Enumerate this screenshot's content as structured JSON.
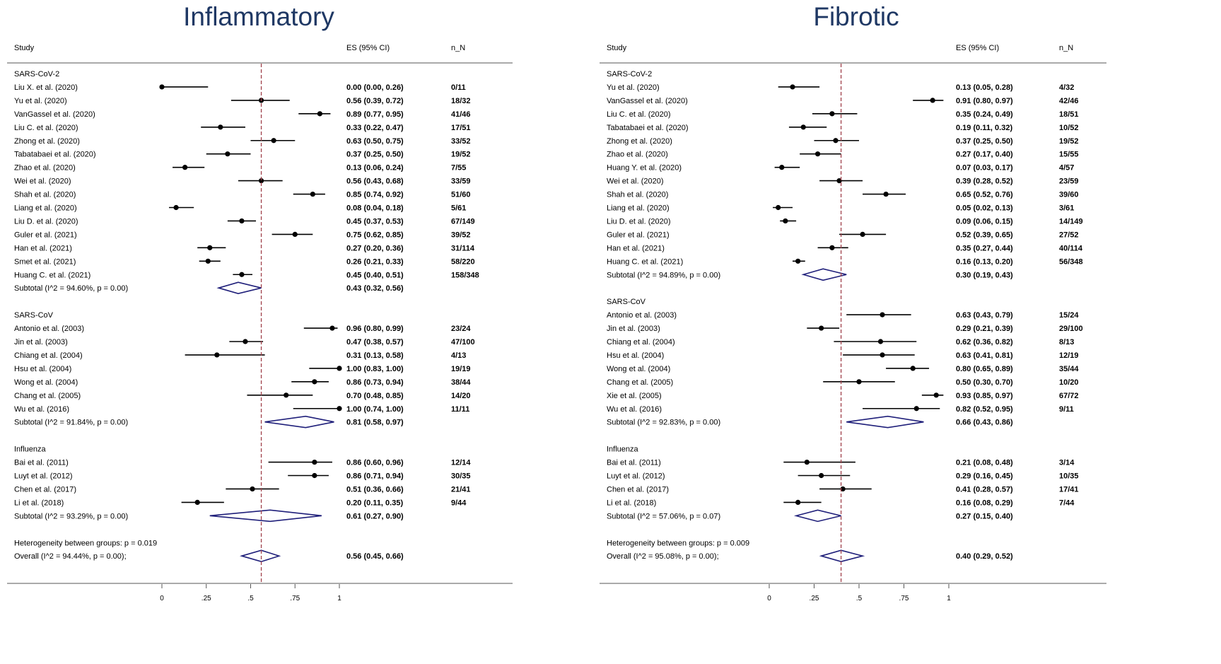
{
  "chart_data": [
    {
      "type": "forest",
      "title": "Inflammatory",
      "columns": {
        "study": "Study",
        "es": "ES (95% CI)",
        "n": "n_N"
      },
      "xticks": [
        "0",
        ".25",
        ".5",
        ".75",
        "1"
      ],
      "xlim": [
        0,
        1
      ],
      "overall_line": 0.56,
      "groups": [
        {
          "name": "SARS-CoV-2",
          "studies": [
            {
              "label": "Liu X. et al. (2020)",
              "es": 0.0,
              "lo": 0.0,
              "hi": 0.26,
              "text": "0.00 (0.00, 0.26)",
              "n": "0/11"
            },
            {
              "label": "Yu et al. (2020)",
              "es": 0.56,
              "lo": 0.39,
              "hi": 0.72,
              "text": "0.56 (0.39, 0.72)",
              "n": "18/32"
            },
            {
              "label": "VanGassel et al. (2020)",
              "es": 0.89,
              "lo": 0.77,
              "hi": 0.95,
              "text": "0.89 (0.77, 0.95)",
              "n": "41/46"
            },
            {
              "label": "Liu C. et al. (2020)",
              "es": 0.33,
              "lo": 0.22,
              "hi": 0.47,
              "text": "0.33 (0.22, 0.47)",
              "n": "17/51"
            },
            {
              "label": "Zhong et al. (2020)",
              "es": 0.63,
              "lo": 0.5,
              "hi": 0.75,
              "text": "0.63 (0.50, 0.75)",
              "n": "33/52"
            },
            {
              "label": "Tabatabaei et al. (2020)",
              "es": 0.37,
              "lo": 0.25,
              "hi": 0.5,
              "text": "0.37 (0.25, 0.50)",
              "n": "19/52"
            },
            {
              "label": "Zhao et al. (2020)",
              "es": 0.13,
              "lo": 0.06,
              "hi": 0.24,
              "text": "0.13 (0.06, 0.24)",
              "n": "7/55"
            },
            {
              "label": "Wei et al. (2020)",
              "es": 0.56,
              "lo": 0.43,
              "hi": 0.68,
              "text": "0.56 (0.43, 0.68)",
              "n": "33/59"
            },
            {
              "label": "Shah et al. (2020)",
              "es": 0.85,
              "lo": 0.74,
              "hi": 0.92,
              "text": "0.85 (0.74, 0.92)",
              "n": "51/60"
            },
            {
              "label": "Liang et al.  (2020)",
              "es": 0.08,
              "lo": 0.04,
              "hi": 0.18,
              "text": "0.08 (0.04, 0.18)",
              "n": "5/61"
            },
            {
              "label": "Liu D. et al. (2020)",
              "es": 0.45,
              "lo": 0.37,
              "hi": 0.53,
              "text": "0.45 (0.37, 0.53)",
              "n": "67/149"
            },
            {
              "label": "Guler et al. (2021)",
              "es": 0.75,
              "lo": 0.62,
              "hi": 0.85,
              "text": "0.75 (0.62, 0.85)",
              "n": "39/52"
            },
            {
              "label": "Han et al. (2021)",
              "es": 0.27,
              "lo": 0.2,
              "hi": 0.36,
              "text": "0.27 (0.20, 0.36)",
              "n": "31/114"
            },
            {
              "label": "Smet et al. (2021)",
              "es": 0.26,
              "lo": 0.21,
              "hi": 0.33,
              "text": "0.26 (0.21, 0.33)",
              "n": "58/220"
            },
            {
              "label": "Huang C. et al. (2021)",
              "es": 0.45,
              "lo": 0.4,
              "hi": 0.51,
              "text": "0.45 (0.40, 0.51)",
              "n": "158/348"
            }
          ],
          "subtotal": {
            "label": "Subtotal  (I^2 = 94.60%, p = 0.00)",
            "es": 0.43,
            "lo": 0.32,
            "hi": 0.56,
            "text": "0.43 (0.32, 0.56)"
          }
        },
        {
          "name": "SARS-CoV",
          "studies": [
            {
              "label": "Antonio et al.  (2003)",
              "es": 0.96,
              "lo": 0.8,
              "hi": 0.99,
              "text": "0.96 (0.80, 0.99)",
              "n": "23/24"
            },
            {
              "label": "Jin et al.  (2003)",
              "es": 0.47,
              "lo": 0.38,
              "hi": 0.57,
              "text": "0.47 (0.38, 0.57)",
              "n": "47/100"
            },
            {
              "label": "Chiang et al. (2004)",
              "es": 0.31,
              "lo": 0.13,
              "hi": 0.58,
              "text": "0.31 (0.13, 0.58)",
              "n": "4/13"
            },
            {
              "label": "Hsu et al.  (2004)",
              "es": 1.0,
              "lo": 0.83,
              "hi": 1.0,
              "text": "1.00 (0.83, 1.00)",
              "n": "19/19"
            },
            {
              "label": "Wong et al. (2004)",
              "es": 0.86,
              "lo": 0.73,
              "hi": 0.94,
              "text": "0.86 (0.73, 0.94)",
              "n": "38/44"
            },
            {
              "label": "Chang et al. (2005)",
              "es": 0.7,
              "lo": 0.48,
              "hi": 0.85,
              "text": "0.70 (0.48, 0.85)",
              "n": "14/20"
            },
            {
              "label": "Wu et al. (2016)",
              "es": 1.0,
              "lo": 0.74,
              "hi": 1.0,
              "text": "1.00 (0.74, 1.00)",
              "n": "11/11"
            }
          ],
          "subtotal": {
            "label": "Subtotal  (I^2 = 91.84%, p = 0.00)",
            "es": 0.81,
            "lo": 0.58,
            "hi": 0.97,
            "text": "0.81 (0.58, 0.97)"
          }
        },
        {
          "name": "Influenza",
          "studies": [
            {
              "label": "Bai et al. (2011)",
              "es": 0.86,
              "lo": 0.6,
              "hi": 0.96,
              "text": "0.86 (0.60, 0.96)",
              "n": "12/14"
            },
            {
              "label": "Luyt et al. (2012)",
              "es": 0.86,
              "lo": 0.71,
              "hi": 0.94,
              "text": "0.86 (0.71, 0.94)",
              "n": "30/35"
            },
            {
              "label": "Chen et al. (2017)",
              "es": 0.51,
              "lo": 0.36,
              "hi": 0.66,
              "text": "0.51 (0.36, 0.66)",
              "n": "21/41"
            },
            {
              "label": "Li et al. (2018)",
              "es": 0.2,
              "lo": 0.11,
              "hi": 0.35,
              "text": "0.20 (0.11, 0.35)",
              "n": "9/44"
            }
          ],
          "subtotal": {
            "label": "Subtotal  (I^2 = 93.29%, p = 0.00)",
            "es": 0.61,
            "lo": 0.27,
            "hi": 0.9,
            "text": "0.61 (0.27, 0.90)"
          }
        }
      ],
      "heterogeneity": "Heterogeneity between groups: p = 0.019",
      "overall": {
        "label": "Overall  (I^2 = 94.44%, p = 0.00);",
        "es": 0.56,
        "lo": 0.45,
        "hi": 0.66,
        "text": "0.56 (0.45, 0.66)"
      }
    },
    {
      "type": "forest",
      "title": "Fibrotic",
      "columns": {
        "study": "Study",
        "es": "ES (95% CI)",
        "n": "n_N"
      },
      "xticks": [
        "0",
        ".25",
        ".5",
        ".75",
        "1"
      ],
      "xlim": [
        0,
        1
      ],
      "overall_line": 0.4,
      "groups": [
        {
          "name": "SARS-CoV-2",
          "studies": [
            {
              "label": "Yu et al. (2020)",
              "es": 0.13,
              "lo": 0.05,
              "hi": 0.28,
              "text": "0.13 (0.05, 0.28)",
              "n": "4/32"
            },
            {
              "label": "VanGassel et al. (2020)",
              "es": 0.91,
              "lo": 0.8,
              "hi": 0.97,
              "text": "0.91 (0.80, 0.97)",
              "n": "42/46"
            },
            {
              "label": "Liu C. et al. (2020)",
              "es": 0.35,
              "lo": 0.24,
              "hi": 0.49,
              "text": "0.35 (0.24, 0.49)",
              "n": "18/51"
            },
            {
              "label": "Tabatabaei et al. (2020)",
              "es": 0.19,
              "lo": 0.11,
              "hi": 0.32,
              "text": "0.19 (0.11, 0.32)",
              "n": "10/52"
            },
            {
              "label": "Zhong et al. (2020)",
              "es": 0.37,
              "lo": 0.25,
              "hi": 0.5,
              "text": "0.37 (0.25, 0.50)",
              "n": "19/52"
            },
            {
              "label": "Zhao et al. (2020)",
              "es": 0.27,
              "lo": 0.17,
              "hi": 0.4,
              "text": "0.27 (0.17, 0.40)",
              "n": "15/55"
            },
            {
              "label": "Huang Y. et al. (2020)",
              "es": 0.07,
              "lo": 0.03,
              "hi": 0.17,
              "text": "0.07 (0.03, 0.17)",
              "n": "4/57"
            },
            {
              "label": "Wei et al. (2020)",
              "es": 0.39,
              "lo": 0.28,
              "hi": 0.52,
              "text": "0.39 (0.28, 0.52)",
              "n": "23/59"
            },
            {
              "label": "Shah et al. (2020)",
              "es": 0.65,
              "lo": 0.52,
              "hi": 0.76,
              "text": "0.65 (0.52, 0.76)",
              "n": "39/60"
            },
            {
              "label": "Liang et al.  (2020)",
              "es": 0.05,
              "lo": 0.02,
              "hi": 0.13,
              "text": "0.05 (0.02, 0.13)",
              "n": "3/61"
            },
            {
              "label": "Liu D. et al. (2020)",
              "es": 0.09,
              "lo": 0.06,
              "hi": 0.15,
              "text": "0.09 (0.06, 0.15)",
              "n": "14/149"
            },
            {
              "label": "Guler et al. (2021)",
              "es": 0.52,
              "lo": 0.39,
              "hi": 0.65,
              "text": "0.52 (0.39, 0.65)",
              "n": "27/52"
            },
            {
              "label": "Han et al. (2021)",
              "es": 0.35,
              "lo": 0.27,
              "hi": 0.44,
              "text": "0.35 (0.27, 0.44)",
              "n": "40/114"
            },
            {
              "label": "Huang C. et al. (2021)",
              "es": 0.16,
              "lo": 0.13,
              "hi": 0.2,
              "text": "0.16 (0.13, 0.20)",
              "n": "56/348"
            }
          ],
          "subtotal": {
            "label": "Subtotal  (I^2 = 94.89%, p = 0.00)",
            "es": 0.3,
            "lo": 0.19,
            "hi": 0.43,
            "text": "0.30 (0.19, 0.43)"
          }
        },
        {
          "name": "SARS-CoV",
          "studies": [
            {
              "label": "Antonio et al.  (2003)",
              "es": 0.63,
              "lo": 0.43,
              "hi": 0.79,
              "text": "0.63 (0.43, 0.79)",
              "n": "15/24"
            },
            {
              "label": "Jin et al.  (2003)",
              "es": 0.29,
              "lo": 0.21,
              "hi": 0.39,
              "text": "0.29 (0.21, 0.39)",
              "n": "29/100"
            },
            {
              "label": "Chiang et al. (2004)",
              "es": 0.62,
              "lo": 0.36,
              "hi": 0.82,
              "text": "0.62 (0.36, 0.82)",
              "n": "8/13"
            },
            {
              "label": "Hsu et al.  (2004)",
              "es": 0.63,
              "lo": 0.41,
              "hi": 0.81,
              "text": "0.63 (0.41, 0.81)",
              "n": "12/19"
            },
            {
              "label": "Wong et al. (2004)",
              "es": 0.8,
              "lo": 0.65,
              "hi": 0.89,
              "text": "0.80 (0.65, 0.89)",
              "n": "35/44"
            },
            {
              "label": "Chang et al. (2005)",
              "es": 0.5,
              "lo": 0.3,
              "hi": 0.7,
              "text": "0.50 (0.30, 0.70)",
              "n": "10/20"
            },
            {
              "label": "Xie et al.  (2005)",
              "es": 0.93,
              "lo": 0.85,
              "hi": 0.97,
              "text": "0.93 (0.85, 0.97)",
              "n": "67/72"
            },
            {
              "label": "Wu et al. (2016)",
              "es": 0.82,
              "lo": 0.52,
              "hi": 0.95,
              "text": "0.82 (0.52, 0.95)",
              "n": "9/11"
            }
          ],
          "subtotal": {
            "label": "Subtotal  (I^2 = 92.83%, p = 0.00)",
            "es": 0.66,
            "lo": 0.43,
            "hi": 0.86,
            "text": "0.66 (0.43, 0.86)"
          }
        },
        {
          "name": "Influenza",
          "studies": [
            {
              "label": "Bai et al. (2011)",
              "es": 0.21,
              "lo": 0.08,
              "hi": 0.48,
              "text": "0.21 (0.08, 0.48)",
              "n": "3/14"
            },
            {
              "label": "Luyt et al. (2012)",
              "es": 0.29,
              "lo": 0.16,
              "hi": 0.45,
              "text": "0.29 (0.16, 0.45)",
              "n": "10/35"
            },
            {
              "label": "Chen et al. (2017)",
              "es": 0.41,
              "lo": 0.28,
              "hi": 0.57,
              "text": "0.41 (0.28, 0.57)",
              "n": "17/41"
            },
            {
              "label": "Li et al. (2018)",
              "es": 0.16,
              "lo": 0.08,
              "hi": 0.29,
              "text": "0.16 (0.08, 0.29)",
              "n": "7/44"
            }
          ],
          "subtotal": {
            "label": "Subtotal  (I^2 = 57.06%, p = 0.07)",
            "es": 0.27,
            "lo": 0.15,
            "hi": 0.4,
            "text": "0.27 (0.15, 0.40)"
          }
        }
      ],
      "heterogeneity": "Heterogeneity between groups: p = 0.009",
      "overall": {
        "label": "Overall  (I^2 = 95.08%, p = 0.00);",
        "es": 0.4,
        "lo": 0.29,
        "hi": 0.52,
        "text": "0.40 (0.29, 0.52)"
      }
    }
  ],
  "colors": {
    "title": "#1f3864",
    "diamond": "#1f1f7a",
    "ref_line": "#a0404a",
    "marker": "#000000"
  }
}
